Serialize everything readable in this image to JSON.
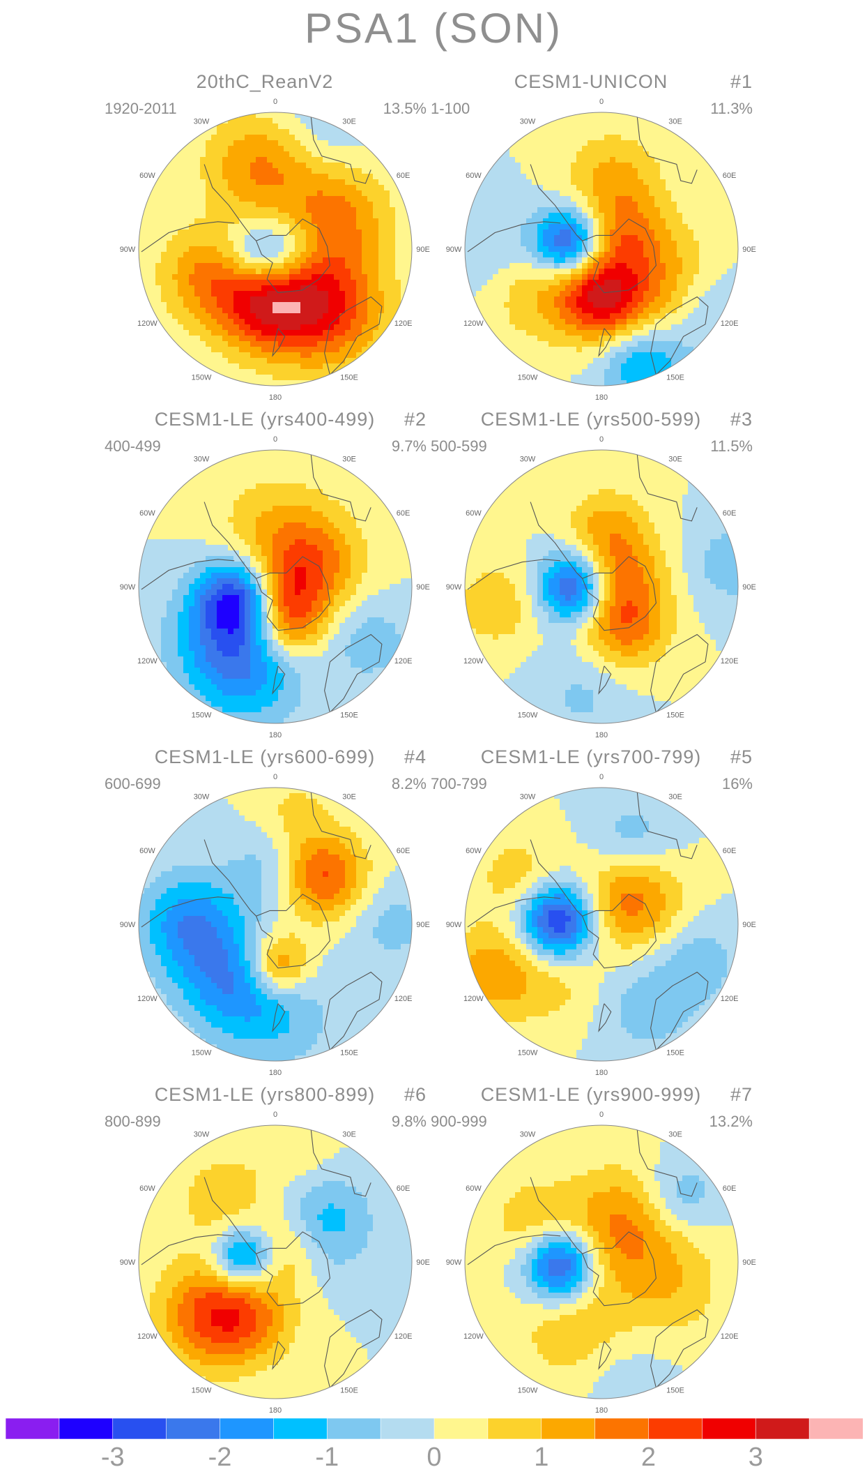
{
  "figure": {
    "title": "PSA1 (SON)"
  },
  "panels": [
    {
      "title": "20thC_ReanV2",
      "number": "",
      "years": "1920-2011",
      "variance": "13.5%",
      "pattern": "rean"
    },
    {
      "title": "CESM1-UNICON",
      "number": "#1",
      "years": "1-100",
      "variance": "11.3%",
      "pattern": "unicon"
    },
    {
      "title": "CESM1-LE (yrs400-499)",
      "number": "#2",
      "years": "400-499",
      "variance": "9.7%",
      "pattern": "le2"
    },
    {
      "title": "CESM1-LE (yrs500-599)",
      "number": "#3",
      "years": "500-599",
      "variance": "11.5%",
      "pattern": "le3"
    },
    {
      "title": "CESM1-LE (yrs600-699)",
      "number": "#4",
      "years": "600-699",
      "variance": "8.2%",
      "pattern": "le4"
    },
    {
      "title": "CESM1-LE (yrs700-799)",
      "number": "#5",
      "years": "700-799",
      "variance": "16%",
      "pattern": "le5"
    },
    {
      "title": "CESM1-LE (yrs800-899)",
      "number": "#6",
      "years": "800-899",
      "variance": "9.8%",
      "pattern": "le6"
    },
    {
      "title": "CESM1-LE (yrs900-999)",
      "number": "#7",
      "years": "900-999",
      "variance": "13.2%",
      "pattern": "le7"
    }
  ],
  "lon_labels": {
    "l0": "0",
    "l30e": "30E",
    "l60e": "60E",
    "l90e": "90E",
    "l120e": "120E",
    "l150e": "150E",
    "l180": "180",
    "l150w": "150W",
    "l120w": "120W",
    "l90w": "90W",
    "l60w": "60W",
    "l30w": "30W"
  },
  "colorbar": {
    "colors": [
      "#8a1ef0",
      "#1e00ff",
      "#2850f0",
      "#3a78ec",
      "#1e96ff",
      "#00c0ff",
      "#7ec8f0",
      "#b4dcf0",
      "#fff68e",
      "#fcd22c",
      "#fca800",
      "#fc7400",
      "#fc3c00",
      "#f00000",
      "#d01a1a",
      "#fcb4b4"
    ],
    "tick_labels": [
      "-3",
      "-2",
      "-1",
      "0",
      "1",
      "2",
      "3"
    ]
  },
  "map_colors": {
    "ocean_bg": "#b4dcf0",
    "coast": "#555555",
    "rim": "#888888"
  }
}
